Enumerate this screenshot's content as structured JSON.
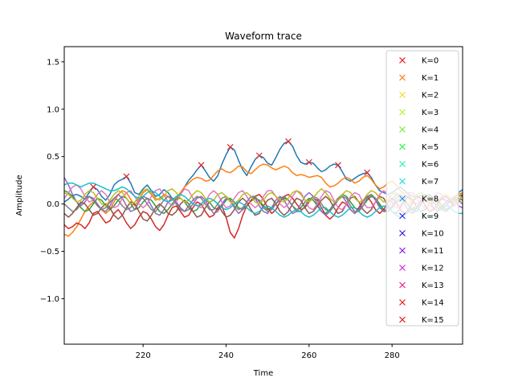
{
  "chart_data": {
    "type": "line",
    "title": "Waveform trace",
    "xlabel": "Time",
    "ylabel": "Amplitude",
    "xlim": [
      201,
      297
    ],
    "ylim": [
      -1.48,
      1.66
    ],
    "xticks": [
      220,
      240,
      260,
      280
    ],
    "yticks": [
      -1.0,
      -0.5,
      0.0,
      0.5,
      1.0,
      1.5
    ],
    "grid": false,
    "legend_position": "top-right",
    "x": [
      201,
      202,
      203,
      204,
      205,
      206,
      207,
      208,
      209,
      210,
      211,
      212,
      213,
      214,
      215,
      216,
      217,
      218,
      219,
      220,
      221,
      222,
      223,
      224,
      225,
      226,
      227,
      228,
      229,
      230,
      231,
      232,
      233,
      234,
      235,
      236,
      237,
      238,
      239,
      240,
      241,
      242,
      243,
      244,
      245,
      246,
      247,
      248,
      249,
      250,
      251,
      252,
      253,
      254,
      255,
      256,
      257,
      258,
      259,
      260,
      261,
      262,
      263,
      264,
      265,
      266,
      267,
      268,
      269,
      270,
      271,
      272,
      273,
      274,
      275,
      276,
      277,
      278,
      279,
      280,
      281,
      282,
      283,
      284,
      285,
      286,
      287,
      288,
      289,
      290,
      291,
      292,
      293,
      294,
      295,
      296,
      297
    ],
    "series": [
      {
        "color": "#1f77b4",
        "values": [
          0.02,
          0.05,
          0.09,
          0.1,
          0.08,
          0.05,
          0.12,
          0.18,
          0.15,
          0.08,
          0.04,
          0.1,
          0.2,
          0.24,
          0.26,
          0.29,
          0.22,
          0.12,
          0.1,
          0.16,
          0.2,
          0.14,
          0.08,
          0.1,
          0.15,
          0.12,
          0.06,
          0.05,
          0.1,
          0.18,
          0.25,
          0.3,
          0.36,
          0.41,
          0.35,
          0.28,
          0.24,
          0.3,
          0.42,
          0.52,
          0.6,
          0.57,
          0.46,
          0.36,
          0.3,
          0.39,
          0.47,
          0.51,
          0.49,
          0.43,
          0.41,
          0.49,
          0.58,
          0.64,
          0.66,
          0.61,
          0.51,
          0.44,
          0.42,
          0.44,
          0.43,
          0.38,
          0.34,
          0.36,
          0.4,
          0.42,
          0.41,
          0.34,
          0.26,
          0.24,
          0.27,
          0.3,
          0.32,
          0.33,
          0.28,
          0.2,
          0.14,
          0.12,
          0.1,
          0.12,
          0.15,
          0.18,
          0.14,
          0.1,
          0.08,
          0.07,
          0.09,
          0.1,
          0.04,
          0.0,
          0.03,
          0.05,
          0.04,
          0.01,
          0.05,
          0.12,
          0.15
        ]
      },
      {
        "color": "#ff7f0e",
        "values": [
          -0.32,
          -0.34,
          -0.3,
          -0.24,
          -0.16,
          -0.08,
          -0.02,
          0.02,
          0.0,
          -0.06,
          -0.1,
          -0.06,
          0.02,
          0.1,
          0.14,
          0.12,
          0.05,
          -0.02,
          0.04,
          0.12,
          0.15,
          0.1,
          0.04,
          0.06,
          0.1,
          0.08,
          0.04,
          0.06,
          0.12,
          0.18,
          0.22,
          0.26,
          0.28,
          0.27,
          0.24,
          0.25,
          0.3,
          0.35,
          0.37,
          0.34,
          0.33,
          0.36,
          0.4,
          0.39,
          0.34,
          0.32,
          0.36,
          0.4,
          0.42,
          0.41,
          0.38,
          0.36,
          0.38,
          0.4,
          0.38,
          0.33,
          0.3,
          0.31,
          0.3,
          0.28,
          0.29,
          0.3,
          0.28,
          0.22,
          0.18,
          0.19,
          0.22,
          0.26,
          0.28,
          0.26,
          0.22,
          0.24,
          0.28,
          0.3,
          0.26,
          0.2,
          0.16,
          0.18,
          0.22,
          0.24,
          0.2,
          0.14,
          0.1,
          0.06,
          0.02,
          0.0,
          0.02,
          0.04,
          0.0,
          -0.05,
          -0.06,
          -0.02,
          0.02,
          0.05,
          0.08,
          0.1,
          0.12
        ]
      },
      {
        "color": "#2ca02c",
        "values": [
          0.14,
          0.12,
          0.08,
          0.02,
          -0.04,
          -0.08,
          -0.06,
          0.0,
          0.06,
          0.04,
          -0.02,
          -0.06,
          -0.02,
          0.04,
          0.08,
          0.06,
          0.0,
          -0.06,
          -0.04,
          0.02,
          0.06,
          0.04,
          -0.02,
          -0.08,
          -0.1,
          -0.06,
          0.0,
          0.05,
          0.06,
          0.02,
          -0.04,
          -0.08,
          -0.06,
          0.0,
          0.04,
          0.02,
          -0.04,
          -0.06,
          -0.02,
          0.04,
          0.06,
          0.02,
          -0.04,
          -0.06,
          -0.02,
          0.03,
          0.06,
          0.04,
          -0.02,
          -0.06,
          -0.04,
          0.0,
          0.04,
          0.06,
          0.04,
          -0.02,
          -0.06,
          -0.04,
          0.02,
          0.06,
          0.04,
          -0.02,
          -0.08,
          -0.1,
          -0.06,
          0.0,
          0.06,
          0.1,
          0.08,
          0.02,
          -0.04,
          -0.06,
          -0.02,
          0.04,
          0.08,
          0.06,
          0.0,
          -0.06,
          -0.08,
          -0.04,
          0.02,
          0.06,
          0.04,
          -0.02,
          -0.06,
          -0.04,
          0.02,
          0.08,
          0.1,
          0.06,
          0.0,
          -0.06,
          -0.08,
          -0.04,
          0.02,
          0.08,
          0.1
        ]
      },
      {
        "color": "#d62728",
        "values": [
          -0.22,
          -0.26,
          -0.24,
          -0.2,
          -0.22,
          -0.26,
          -0.2,
          -0.1,
          -0.08,
          -0.14,
          -0.2,
          -0.18,
          -0.1,
          -0.06,
          -0.12,
          -0.2,
          -0.26,
          -0.22,
          -0.14,
          -0.08,
          -0.1,
          -0.16,
          -0.24,
          -0.28,
          -0.22,
          -0.12,
          -0.04,
          -0.02,
          -0.08,
          -0.14,
          -0.12,
          -0.04,
          0.02,
          0.0,
          -0.08,
          -0.14,
          -0.12,
          -0.04,
          -0.02,
          -0.14,
          -0.3,
          -0.36,
          -0.26,
          -0.12,
          -0.02,
          0.04,
          0.08,
          0.1,
          0.05,
          -0.04,
          -0.1,
          -0.06,
          0.02,
          0.08,
          0.1,
          0.06,
          0.0,
          -0.06,
          -0.04,
          0.02,
          0.06,
          0.04,
          -0.04,
          -0.12,
          -0.16,
          -0.12,
          -0.04,
          0.02,
          0.0,
          -0.06,
          -0.1,
          -0.04,
          0.04,
          0.08,
          0.02,
          -0.06,
          -0.1,
          -0.06,
          0.02,
          0.06,
          0.02,
          -0.06,
          -0.1,
          -0.06,
          0.02,
          0.08,
          0.06,
          -0.02,
          -0.08,
          -0.06,
          0.0,
          0.06,
          0.08,
          0.04,
          -0.02,
          0.02,
          0.1
        ]
      },
      {
        "color": "#9467bd",
        "values": [
          0.28,
          0.2,
          0.1,
          0.02,
          -0.02,
          0.02,
          0.08,
          0.06,
          0.0,
          -0.06,
          -0.08,
          -0.02,
          0.06,
          0.1,
          0.06,
          -0.02,
          -0.08,
          -0.06,
          0.02,
          0.08,
          0.06,
          -0.02,
          -0.1,
          -0.12,
          -0.06,
          0.02,
          0.06,
          0.02,
          -0.04,
          -0.08,
          -0.06,
          0.0,
          0.06,
          0.08,
          0.04,
          -0.04,
          -0.1,
          -0.08,
          0.0,
          0.06,
          0.04,
          -0.04,
          -0.1,
          -0.06,
          0.02,
          0.08,
          0.06,
          -0.02,
          -0.08,
          -0.1,
          -0.04,
          0.04,
          0.08,
          0.04,
          -0.04,
          -0.1,
          -0.08,
          0.0,
          0.08,
          0.12,
          0.08,
          0.0,
          -0.08,
          -0.12,
          -0.08,
          0.0,
          0.06,
          0.08,
          0.02,
          -0.06,
          -0.1,
          -0.06,
          0.02,
          0.08,
          0.1,
          0.04,
          -0.04,
          -0.08,
          -0.04,
          0.04,
          0.1,
          0.08,
          0.0,
          -0.08,
          -0.1,
          -0.04,
          0.04,
          0.08,
          0.04,
          -0.04,
          -0.08,
          -0.04,
          0.02,
          0.06,
          0.04,
          -0.02,
          -0.04
        ]
      },
      {
        "color": "#8c564b",
        "values": [
          -0.1,
          -0.14,
          -0.1,
          -0.04,
          0.02,
          0.0,
          -0.06,
          -0.12,
          -0.1,
          -0.04,
          0.0,
          -0.04,
          -0.12,
          -0.16,
          -0.12,
          -0.04,
          0.02,
          0.0,
          -0.08,
          -0.16,
          -0.18,
          -0.12,
          -0.04,
          0.0,
          -0.04,
          -0.1,
          -0.12,
          -0.08,
          0.0,
          0.04,
          0.0,
          -0.08,
          -0.14,
          -0.12,
          -0.04,
          0.02,
          0.04,
          0.0,
          -0.08,
          -0.14,
          -0.12,
          -0.06,
          0.02,
          0.06,
          0.02,
          -0.06,
          -0.12,
          -0.1,
          -0.02,
          0.04,
          0.06,
          0.0,
          -0.08,
          -0.12,
          -0.08,
          0.0,
          0.06,
          0.04,
          -0.04,
          -0.1,
          -0.08,
          -0.02,
          0.04,
          0.08,
          0.04,
          -0.04,
          -0.1,
          -0.08,
          0.0,
          0.06,
          0.08,
          0.02,
          -0.06,
          -0.1,
          -0.06,
          0.02,
          0.08,
          0.06,
          -0.02,
          -0.08,
          -0.1,
          -0.04,
          0.04,
          0.08,
          0.04,
          -0.04,
          -0.08,
          -0.06,
          0.0,
          0.06,
          0.04,
          -0.02,
          -0.06,
          -0.04,
          0.02,
          0.06,
          0.04
        ]
      },
      {
        "color": "#e377c2",
        "values": [
          0.06,
          0.12,
          0.18,
          0.2,
          0.16,
          0.08,
          0.02,
          0.04,
          0.1,
          0.14,
          0.1,
          0.02,
          -0.04,
          -0.02,
          0.06,
          0.12,
          0.14,
          0.08,
          0.0,
          -0.04,
          0.0,
          0.08,
          0.14,
          0.16,
          0.1,
          0.02,
          -0.02,
          0.02,
          0.1,
          0.16,
          0.14,
          0.06,
          -0.02,
          -0.04,
          0.02,
          0.1,
          0.14,
          0.1,
          0.02,
          -0.04,
          -0.02,
          0.06,
          0.12,
          0.14,
          0.08,
          0.0,
          -0.04,
          0.0,
          0.08,
          0.14,
          0.14,
          0.08,
          0.0,
          -0.04,
          0.0,
          0.08,
          0.14,
          0.12,
          0.04,
          -0.04,
          -0.06,
          0.0,
          0.08,
          0.14,
          0.12,
          0.04,
          -0.04,
          -0.06,
          0.0,
          0.08,
          0.12,
          0.1,
          0.02,
          -0.04,
          -0.04,
          0.02,
          0.1,
          0.14,
          0.1,
          0.02,
          -0.04,
          -0.02,
          0.06,
          0.12,
          0.12,
          0.06,
          -0.02,
          -0.04,
          0.0,
          0.08,
          0.12,
          0.1,
          0.02,
          -0.04,
          -0.02,
          0.04,
          0.08
        ]
      },
      {
        "color": "#7f7f7f",
        "values": [
          0.0,
          -0.04,
          -0.08,
          -0.06,
          0.0,
          0.06,
          0.08,
          0.04,
          -0.02,
          -0.06,
          -0.04,
          0.02,
          0.06,
          0.04,
          -0.02,
          -0.06,
          -0.04,
          0.02,
          0.06,
          0.06,
          0.0,
          -0.06,
          -0.08,
          -0.02,
          0.04,
          0.08,
          0.06,
          0.0,
          -0.06,
          -0.08,
          -0.02,
          0.04,
          0.08,
          0.06,
          0.0,
          -0.06,
          -0.06,
          0.0,
          0.06,
          0.08,
          0.04,
          -0.02,
          -0.06,
          -0.04,
          0.02,
          0.08,
          0.08,
          0.02,
          -0.04,
          -0.08,
          -0.06,
          0.0,
          0.06,
          0.08,
          0.04,
          -0.02,
          -0.08,
          -0.08,
          -0.02,
          0.04,
          0.08,
          0.06,
          0.0,
          -0.06,
          -0.08,
          -0.02,
          0.04,
          0.08,
          0.06,
          -0.02,
          -0.08,
          -0.08,
          -0.02,
          0.06,
          0.1,
          0.06,
          -0.02,
          -0.08,
          -0.08,
          -0.02,
          0.06,
          0.1,
          0.06,
          -0.02,
          -0.08,
          -0.08,
          0.0,
          0.06,
          0.08,
          0.02,
          -0.04,
          -0.06,
          -0.02,
          0.04,
          0.06,
          0.04,
          0.0
        ]
      },
      {
        "color": "#bcbd22",
        "values": [
          0.12,
          0.1,
          0.06,
          0.02,
          0.04,
          0.1,
          0.14,
          0.12,
          0.06,
          0.0,
          -0.02,
          0.04,
          0.1,
          0.14,
          0.12,
          0.06,
          0.0,
          0.02,
          0.08,
          0.14,
          0.16,
          0.12,
          0.06,
          0.04,
          0.08,
          0.14,
          0.16,
          0.12,
          0.06,
          0.02,
          0.04,
          0.1,
          0.14,
          0.12,
          0.06,
          0.02,
          0.04,
          0.1,
          0.12,
          0.08,
          0.02,
          0.0,
          0.04,
          0.1,
          0.12,
          0.08,
          0.02,
          0.0,
          0.04,
          0.1,
          0.12,
          0.08,
          0.04,
          0.02,
          0.06,
          0.12,
          0.14,
          0.1,
          0.04,
          0.02,
          0.06,
          0.12,
          0.16,
          0.12,
          0.06,
          0.02,
          0.04,
          0.1,
          0.14,
          0.12,
          0.06,
          0.02,
          0.04,
          0.1,
          0.14,
          0.12,
          0.06,
          0.02,
          0.04,
          0.1,
          0.12,
          0.08,
          0.02,
          0.0,
          0.04,
          0.1,
          0.12,
          0.08,
          0.02,
          0.0,
          0.04,
          0.08,
          0.1,
          0.06,
          0.02,
          0.04,
          0.08
        ]
      },
      {
        "color": "#17becf",
        "values": [
          0.2,
          0.22,
          0.22,
          0.2,
          0.18,
          0.2,
          0.22,
          0.22,
          0.2,
          0.18,
          0.16,
          0.14,
          0.14,
          0.16,
          0.18,
          0.16,
          0.12,
          0.08,
          0.06,
          0.08,
          0.12,
          0.14,
          0.12,
          0.08,
          0.04,
          0.02,
          0.04,
          0.08,
          0.1,
          0.08,
          0.04,
          0.0,
          -0.02,
          0.0,
          0.04,
          0.06,
          0.04,
          0.0,
          -0.04,
          -0.06,
          -0.04,
          0.0,
          0.02,
          0.0,
          -0.04,
          -0.08,
          -0.1,
          -0.08,
          -0.04,
          -0.02,
          -0.04,
          -0.08,
          -0.12,
          -0.14,
          -0.12,
          -0.08,
          -0.06,
          -0.08,
          -0.12,
          -0.14,
          -0.12,
          -0.08,
          -0.04,
          -0.04,
          -0.08,
          -0.12,
          -0.14,
          -0.12,
          -0.08,
          -0.04,
          -0.04,
          -0.08,
          -0.12,
          -0.14,
          -0.12,
          -0.08,
          -0.04,
          -0.02,
          -0.04,
          -0.08,
          -0.12,
          -0.14,
          -0.12,
          -0.08,
          -0.04,
          -0.04,
          -0.08,
          -0.12,
          -0.14,
          -0.12,
          -0.08,
          -0.04,
          -0.02,
          -0.04,
          -0.08,
          -0.1,
          -0.1
        ]
      }
    ],
    "markers": {
      "x": [
        208,
        216,
        234,
        241,
        248,
        255,
        260,
        267,
        274
      ],
      "y": [
        0.18,
        0.29,
        0.41,
        0.6,
        0.51,
        0.66,
        0.44,
        0.41,
        0.33
      ],
      "color": "#d62728"
    },
    "legend": {
      "entries": [
        {
          "label": "K=0",
          "color": "#e8141d"
        },
        {
          "label": "K=1",
          "color": "#f57a1f"
        },
        {
          "label": "K=2",
          "color": "#e9dd25"
        },
        {
          "label": "K=3",
          "color": "#b9f02b"
        },
        {
          "label": "K=4",
          "color": "#6df23a"
        },
        {
          "label": "K=5",
          "color": "#2cf04c"
        },
        {
          "label": "K=6",
          "color": "#25f0a8"
        },
        {
          "label": "K=7",
          "color": "#23dce8"
        },
        {
          "label": "K=8",
          "color": "#2695f0"
        },
        {
          "label": "K=9",
          "color": "#1a2ff2"
        },
        {
          "label": "K=10",
          "color": "#3b10d8"
        },
        {
          "label": "K=11",
          "color": "#8a18ee"
        },
        {
          "label": "K=12",
          "color": "#d226e0"
        },
        {
          "label": "K=13",
          "color": "#ee1c8a"
        },
        {
          "label": "K=14",
          "color": "#f0141e"
        },
        {
          "label": "K=15",
          "color": "#e3141c"
        }
      ]
    }
  }
}
